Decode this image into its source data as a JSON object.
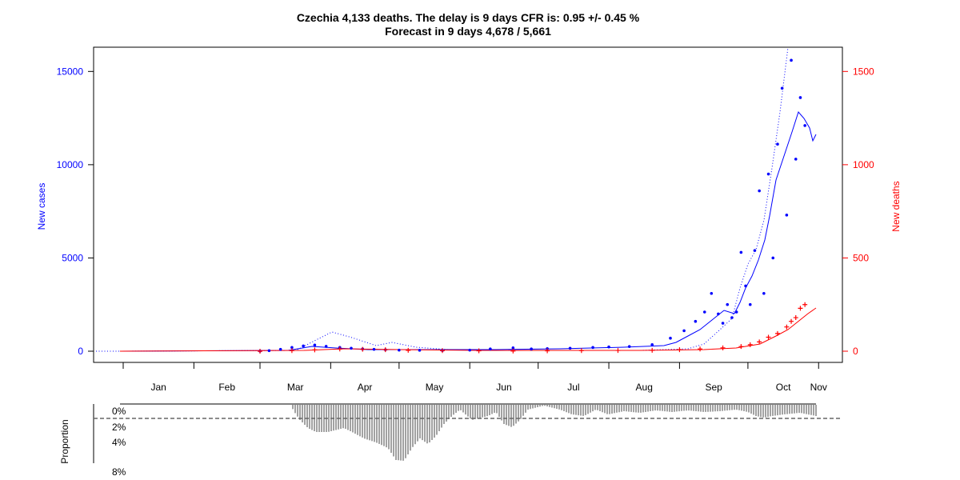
{
  "chart_data": {
    "type": "scatter",
    "title": "Czechia 4,133 deaths. The delay is 9 days CFR is: 0.95 +/- 0.45 %",
    "subtitle": "Forecast in 9 days 4,678 / 5,661",
    "ylabel_left": "New cases",
    "ylabel_right": "New deaths",
    "ylabel_lower": "Proportion",
    "left_axis": {
      "ticks": [
        0,
        5000,
        10000,
        15000
      ],
      "ylim": [
        -600,
        16300
      ],
      "color": "#0000ff"
    },
    "right_axis": {
      "ticks": [
        0,
        500,
        1000,
        1500
      ],
      "ylim": [
        -60,
        1630
      ],
      "color": "#ff0000"
    },
    "x_months": [
      "Jan",
      "Feb",
      "Mar",
      "Apr",
      "May",
      "Jun",
      "Jul",
      "Aug",
      "Sep",
      "Oct",
      "Nov"
    ],
    "lower_axis": {
      "ticks": [
        "0%",
        "2%",
        "4%",
        "8%"
      ],
      "dashed_reference": "2%"
    },
    "colors": {
      "cases": "#0000ff",
      "deaths": "#ff0000",
      "proportion_bars": "#444444",
      "frame": "#000000"
    },
    "series": [
      {
        "name": "New cases",
        "marker": "point",
        "color": "#0000ff",
        "x": [
          "2020-03-01",
          "2020-03-05",
          "2020-03-10",
          "2020-03-15",
          "2020-03-20",
          "2020-03-25",
          "2020-03-30",
          "2020-04-05",
          "2020-04-10",
          "2020-04-15",
          "2020-04-20",
          "2020-04-25",
          "2020-05-01",
          "2020-05-10",
          "2020-05-20",
          "2020-06-01",
          "2020-06-10",
          "2020-06-20",
          "2020-06-28",
          "2020-07-05",
          "2020-07-15",
          "2020-07-25",
          "2020-08-01",
          "2020-08-10",
          "2020-08-20",
          "2020-08-28",
          "2020-09-03",
          "2020-09-08",
          "2020-09-12",
          "2020-09-15",
          "2020-09-18",
          "2020-09-20",
          "2020-09-22",
          "2020-09-24",
          "2020-09-26",
          "2020-09-28",
          "2020-09-30",
          "2020-10-02",
          "2020-10-04",
          "2020-10-06",
          "2020-10-08",
          "2020-10-10",
          "2020-10-12",
          "2020-10-14",
          "2020-10-16",
          "2020-10-18",
          "2020-10-20",
          "2020-10-22",
          "2020-10-24",
          "2020-10-26"
        ],
        "y": [
          5,
          30,
          100,
          200,
          280,
          330,
          260,
          200,
          160,
          120,
          100,
          80,
          60,
          50,
          40,
          60,
          120,
          180,
          120,
          140,
          160,
          200,
          230,
          250,
          350,
          700,
          1100,
          1600,
          2100,
          3100,
          2000,
          1500,
          2500,
          1800,
          2100,
          5300,
          3500,
          2500,
          5400,
          8600,
          3100,
          9500,
          5000,
          11100,
          14100,
          7300,
          15600,
          10300,
          13600,
          12100
        ]
      },
      {
        "name": "New deaths",
        "marker": "plus",
        "color": "#ff0000",
        "x": [
          "2020-03-01",
          "2020-03-15",
          "2020-03-25",
          "2020-04-05",
          "2020-04-15",
          "2020-04-25",
          "2020-05-05",
          "2020-05-20",
          "2020-06-05",
          "2020-06-20",
          "2020-07-05",
          "2020-07-20",
          "2020-08-05",
          "2020-08-20",
          "2020-09-01",
          "2020-09-10",
          "2020-09-20",
          "2020-09-28",
          "2020-10-02",
          "2020-10-06",
          "2020-10-10",
          "2020-10-14",
          "2020-10-18",
          "2020-10-20",
          "2020-10-22",
          "2020-10-24",
          "2020-10-26"
        ],
        "y": [
          0,
          3,
          7,
          12,
          10,
          8,
          5,
          3,
          2,
          1,
          2,
          3,
          4,
          5,
          8,
          12,
          18,
          25,
          35,
          50,
          75,
          95,
          130,
          160,
          180,
          230,
          250
        ]
      }
    ]
  }
}
